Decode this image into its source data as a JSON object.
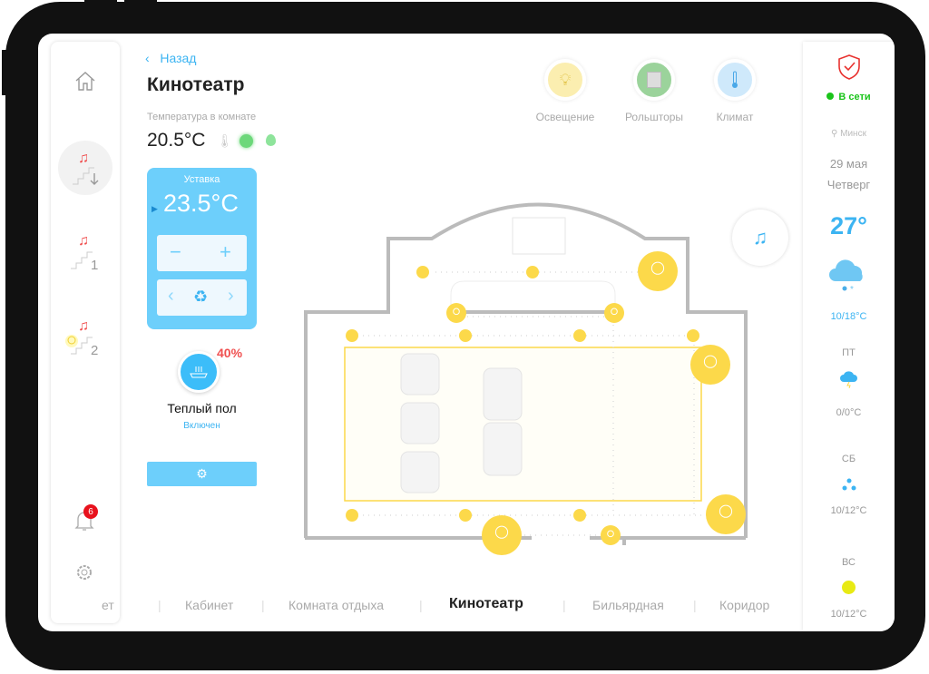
{
  "header": {
    "back_label": "Назад",
    "title": "Кинотеатр",
    "temp_caption": "Температура в комнате",
    "room_temp": "20.5°C"
  },
  "setpoint": {
    "label": "Уставка",
    "value": "23.5°C"
  },
  "floor_heating": {
    "percent": "40%",
    "title": "Теплый пол",
    "status": "Включен",
    "level": 40
  },
  "controls": [
    {
      "label": "Освещение",
      "icon": "bulb-icon",
      "color": "#fbeeb0"
    },
    {
      "label": "Рольшторы",
      "icon": "blinds-icon",
      "color": "#9bd39b"
    },
    {
      "label": "Климат",
      "icon": "thermometer-icon",
      "color": "#cfe9fb"
    }
  ],
  "sidebar": {
    "notifications_count": "6",
    "items": [
      {
        "icon": "home-icon"
      },
      {
        "icon": "floor-down-icon"
      },
      {
        "icon": "floor-1-icon",
        "label": "1"
      },
      {
        "icon": "floor-2-icon",
        "label": "2"
      }
    ]
  },
  "status": {
    "online": "В сети",
    "city": "Минск",
    "date": "29 мая",
    "weekday": "Четверг",
    "temp": "27°",
    "range": "10/18°C"
  },
  "forecast": [
    {
      "day": "ПТ",
      "range": "0/0°C",
      "icon": "storm-icon"
    },
    {
      "day": "СБ",
      "range": "10/12°C",
      "icon": "rain-drops-icon"
    },
    {
      "day": "ВС",
      "range": "10/12°C",
      "icon": "sun-icon"
    }
  ],
  "rooms": [
    "ет",
    "Кабинет",
    "Комната отдыха",
    "Кинотеатр",
    "Бильярдная",
    "Коридор"
  ],
  "active_room": "Кинотеатр",
  "colors": {
    "accent": "#3cb4f2",
    "panel": "#6dcffb",
    "light": "#fcd94a",
    "alert": "#e8322f",
    "online": "#1bc41b"
  }
}
